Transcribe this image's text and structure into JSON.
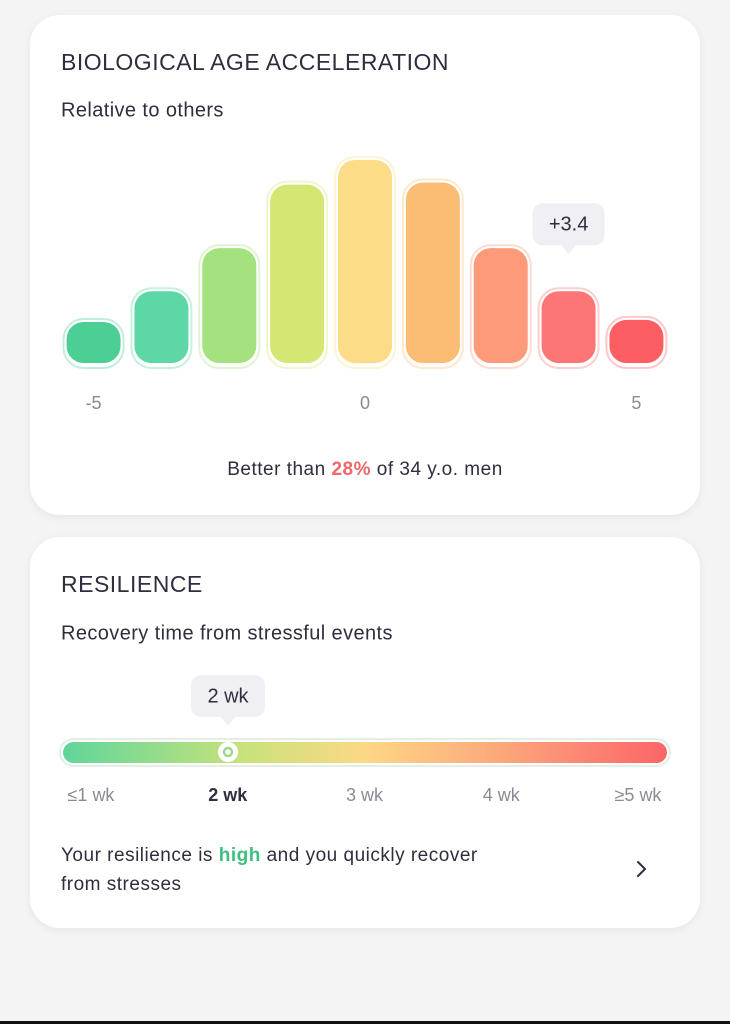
{
  "age_card": {
    "title": "BIOLOGICAL AGE ACCELERATION",
    "subtitle": "Relative to others",
    "chart_data": {
      "type": "bar",
      "x": [
        -5,
        -3.75,
        -2.5,
        -1.25,
        0,
        1.25,
        2.5,
        3.75,
        5
      ],
      "values": [
        21,
        36,
        57,
        88,
        100,
        89,
        57,
        36,
        22
      ],
      "colors": [
        "#4ccf94",
        "#5cd7a5",
        "#a3e27f",
        "#d5e672",
        "#fcdc86",
        "#fbbc74",
        "#fc9a7a",
        "#fc7676",
        "#fc5e64"
      ],
      "xlim": [
        -5.6,
        5.6
      ],
      "ylim": [
        0,
        100
      ],
      "xticks": [
        -5,
        0,
        5
      ],
      "annotation": "+3.4"
    },
    "footer": [
      "Better than ",
      "28%",
      " of 34 y.o. men"
    ]
  },
  "resilience_card": {
    "title": "RESILIENCE",
    "subtitle": "Recovery time from stressful events",
    "callout": "2 wk",
    "scale": [
      "≤1 wk",
      "2 wk",
      "3 wk",
      "4 wk",
      "≥5 wk"
    ],
    "text": [
      "Your resilience is ",
      "high",
      " and you quickly recover",
      "from stresses"
    ]
  }
}
